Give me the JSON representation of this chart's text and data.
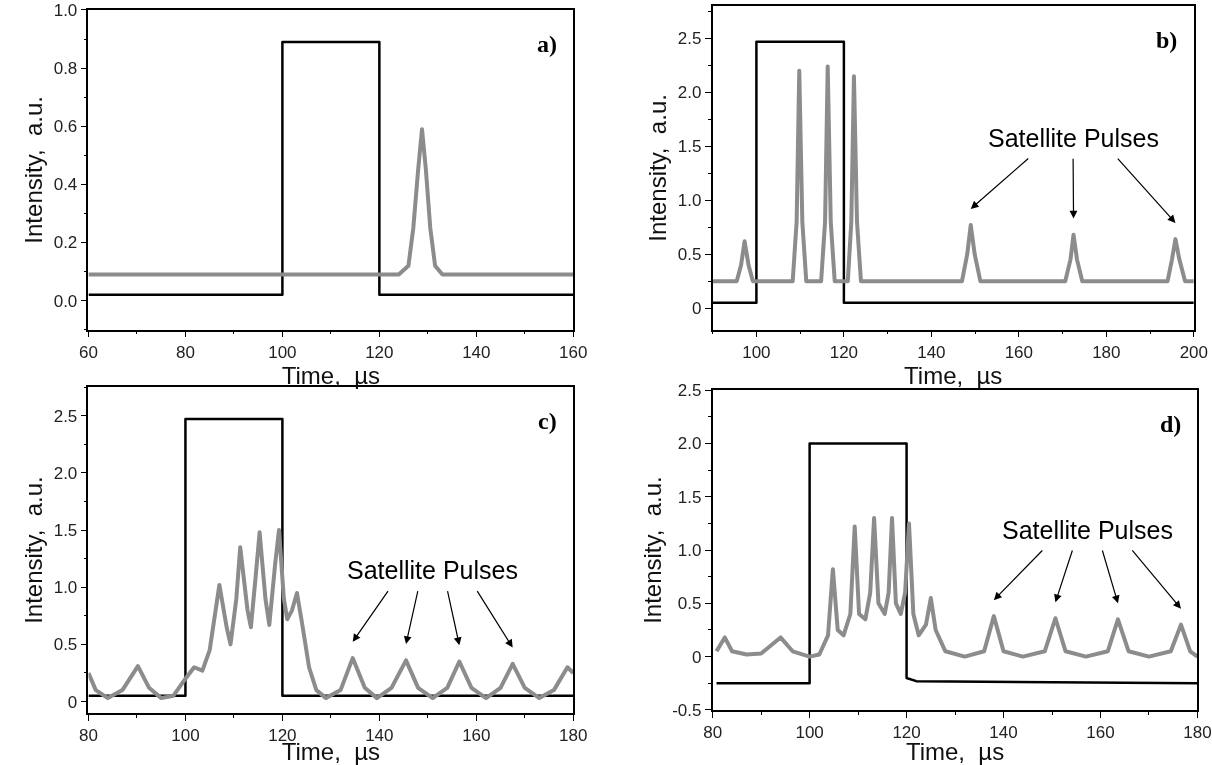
{
  "chart_data": [
    {
      "type": "line",
      "title": "a)",
      "xlabel": "Time,  µs",
      "ylabel": "Intensity,  a.u.",
      "xlim": [
        60,
        160
      ],
      "xticks": [
        60,
        80,
        100,
        120,
        140,
        160
      ],
      "ylim": [
        -0.1,
        1.0
      ],
      "yticks": [
        {
          "value": 0,
          "label": "0.0"
        },
        0.2,
        0.4,
        0.6,
        0.8,
        {
          "value": 1,
          "label": "1.0"
        }
      ],
      "series": [
        {
          "color": "#000000",
          "x": [
            60,
            100,
            100,
            120,
            120,
            160
          ],
          "values": [
            0.02,
            0.02,
            0.89,
            0.89,
            0.02,
            0.02
          ]
        },
        {
          "color": "#8c8c8c",
          "x": [
            60,
            124,
            126,
            127,
            128,
            128.8,
            129.6,
            130.5,
            131.5,
            133,
            160
          ],
          "values": [
            0.09,
            0.09,
            0.12,
            0.25,
            0.45,
            0.59,
            0.45,
            0.25,
            0.12,
            0.09,
            0.09
          ]
        }
      ]
    },
    {
      "type": "line",
      "title": "b)",
      "xlabel": "Time,  µs",
      "ylabel": "Intensity,  a.u.",
      "xlim": [
        90,
        200
      ],
      "xticks": [
        100,
        120,
        140,
        160,
        180,
        200
      ],
      "ylim": [
        -0.2,
        2.8
      ],
      "yticks": [
        0,
        0.5,
        {
          "value": 1,
          "label": "1.0"
        },
        1.5,
        {
          "value": 2,
          "label": "2.0"
        },
        2.5
      ],
      "series": [
        {
          "color": "#000000",
          "x": [
            90,
            100,
            100,
            120,
            120,
            200
          ],
          "values": [
            0.05,
            0.05,
            2.47,
            2.47,
            0.05,
            0.05
          ]
        },
        {
          "color": "#8c8c8c",
          "x": [
            90,
            95.5,
            96.5,
            97.3,
            98.2,
            99.2,
            108.3,
            109.2,
            109.8,
            110.5,
            111.4,
            114.8,
            115.7,
            116.3,
            117,
            117.9,
            120.9,
            121.7,
            122.3,
            123,
            123.9,
            147,
            148.2,
            149,
            149.9,
            151.2,
            170.6,
            171.8,
            172.5,
            173.3,
            174.5,
            194,
            195,
            195.8,
            196.7,
            198,
            200
          ],
          "values": [
            0.25,
            0.25,
            0.4,
            0.62,
            0.4,
            0.25,
            0.25,
            0.8,
            2.2,
            0.8,
            0.25,
            0.25,
            0.8,
            2.24,
            0.8,
            0.25,
            0.25,
            0.8,
            2.15,
            0.8,
            0.25,
            0.25,
            0.5,
            0.77,
            0.5,
            0.25,
            0.25,
            0.45,
            0.68,
            0.45,
            0.25,
            0.25,
            0.45,
            0.64,
            0.45,
            0.25,
            0.25
          ]
        }
      ],
      "annotations": [
        "Satellite Pulses"
      ]
    },
    {
      "type": "line",
      "title": "c)",
      "xlabel": "Time,  µs",
      "ylabel": "Intensity,  a.u.",
      "xlim": [
        80,
        180
      ],
      "xticks": [
        80,
        100,
        120,
        140,
        160,
        180
      ],
      "ylim": [
        -0.1,
        2.75
      ],
      "yticks": [
        0,
        0.5,
        {
          "value": 1,
          "label": "1.0"
        },
        1.5,
        {
          "value": 2,
          "label": "2.0"
        },
        2.5
      ],
      "series": [
        {
          "color": "#000000",
          "x": [
            80,
            100,
            100,
            120,
            120,
            180
          ],
          "values": [
            0.05,
            0.05,
            2.47,
            2.47,
            0.05,
            0.05
          ]
        },
        {
          "color": "#8c8c8c",
          "x": [
            80,
            81.5,
            84,
            87,
            90.2,
            92.5,
            95,
            97.5,
            100,
            101.8,
            103.5,
            105,
            107,
            108.5,
            109.3,
            110.5,
            111.3,
            112.8,
            113.5,
            114.5,
            115.3,
            116.5,
            117.3,
            118.5,
            119.3,
            120.3,
            121,
            122,
            123,
            124,
            125.5,
            127,
            129,
            132,
            134.5,
            137,
            139.5,
            142.5,
            145.5,
            148,
            151,
            154,
            156.5,
            159,
            162,
            165,
            167.5,
            170,
            173,
            176,
            178.8,
            180
          ],
          "values": [
            0.25,
            0.1,
            0.03,
            0.1,
            0.31,
            0.12,
            0.03,
            0.05,
            0.2,
            0.3,
            0.27,
            0.45,
            1.02,
            0.65,
            0.5,
            0.9,
            1.35,
            0.8,
            0.65,
            1.1,
            1.48,
            0.9,
            0.67,
            1.2,
            1.5,
            0.9,
            0.72,
            0.8,
            0.95,
            0.7,
            0.3,
            0.1,
            0.03,
            0.1,
            0.38,
            0.12,
            0.03,
            0.12,
            0.36,
            0.12,
            0.03,
            0.12,
            0.35,
            0.12,
            0.03,
            0.12,
            0.33,
            0.12,
            0.03,
            0.1,
            0.3,
            0.25
          ]
        }
      ],
      "annotations": [
        "Satellite Pulses"
      ]
    },
    {
      "type": "line",
      "title": "d)",
      "xlabel": "Time,  µs",
      "ylabel": "Intensity,  a.u.",
      "xlim": [
        80,
        180
      ],
      "xticks": [
        80,
        100,
        120,
        140,
        160,
        180
      ],
      "ylim": [
        -0.5,
        2.5
      ],
      "yticks": [
        -0.5,
        0,
        0.5,
        {
          "value": 1,
          "label": "1.0"
        },
        1.5,
        {
          "value": 2,
          "label": "2.0"
        },
        2.5
      ],
      "series": [
        {
          "color": "#000000",
          "x": [
            80.8,
            100,
            100,
            120,
            120,
            122,
            180
          ],
          "values": [
            -0.25,
            -0.25,
            2.0,
            2.0,
            -0.2,
            -0.23,
            -0.25
          ]
        },
        {
          "color": "#8c8c8c",
          "x": [
            80.8,
            82.5,
            84,
            87,
            90,
            94,
            96.5,
            100,
            102,
            103.8,
            104.8,
            105.8,
            107,
            108.4,
            109.3,
            110.2,
            111.5,
            112.5,
            113.3,
            114.2,
            115.5,
            116.3,
            117,
            117.8,
            118.8,
            119.7,
            120.5,
            121.4,
            122.5,
            124,
            125,
            126,
            128,
            132,
            136,
            138,
            140,
            144,
            148.5,
            150.7,
            152.8,
            157,
            161.5,
            163.6,
            165.8,
            170,
            174.5,
            176.6,
            178.5,
            180
          ],
          "values": [
            0.05,
            0.18,
            0.05,
            0.02,
            0.03,
            0.18,
            0.05,
            0.0,
            0.02,
            0.2,
            0.82,
            0.25,
            0.2,
            0.4,
            1.22,
            0.4,
            0.35,
            0.6,
            1.3,
            0.5,
            0.4,
            0.6,
            1.3,
            0.5,
            0.4,
            0.6,
            1.25,
            0.4,
            0.2,
            0.3,
            0.55,
            0.25,
            0.05,
            0.0,
            0.05,
            0.38,
            0.05,
            0.0,
            0.05,
            0.36,
            0.05,
            0.0,
            0.05,
            0.35,
            0.05,
            0.0,
            0.05,
            0.3,
            0.05,
            0.0
          ]
        }
      ],
      "annotations": [
        "Satellite Pulses"
      ]
    }
  ]
}
